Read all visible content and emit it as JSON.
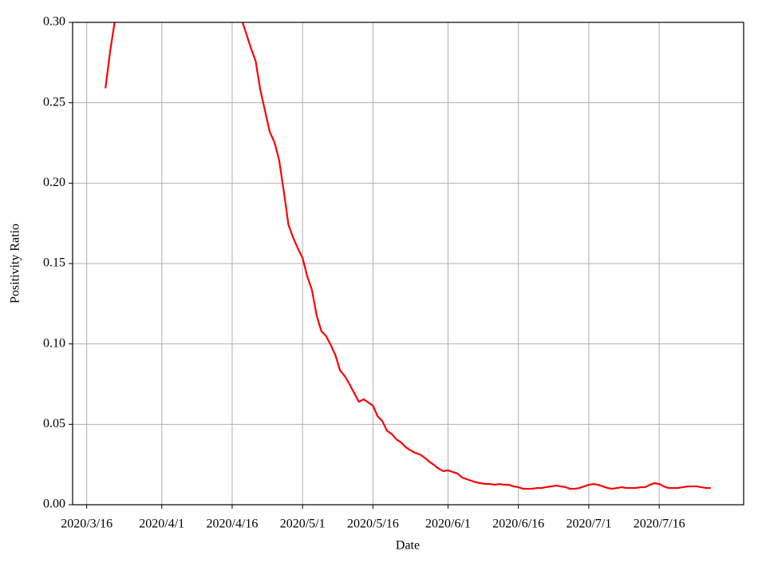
{
  "chart_data": {
    "type": "line",
    "x_label": "Date",
    "y_label": "Positivity Ratio",
    "x": [
      "2020/3/20",
      "2020/3/21",
      "2020/3/22",
      "2020/3/23",
      "2020/3/24",
      "2020/3/25",
      "2020/3/26",
      "2020/3/27",
      "2020/3/28",
      "2020/3/29",
      "2020/3/30",
      "2020/3/31",
      "2020/4/1",
      "2020/4/2",
      "2020/4/3",
      "2020/4/4",
      "2020/4/5",
      "2020/4/6",
      "2020/4/7",
      "2020/4/8",
      "2020/4/9",
      "2020/4/10",
      "2020/4/11",
      "2020/4/12",
      "2020/4/13",
      "2020/4/14",
      "2020/4/15",
      "2020/4/16",
      "2020/4/17",
      "2020/4/18",
      "2020/4/19",
      "2020/4/20",
      "2020/4/21",
      "2020/4/22",
      "2020/4/23",
      "2020/4/24",
      "2020/4/25",
      "2020/4/26",
      "2020/4/27",
      "2020/4/28",
      "2020/4/29",
      "2020/4/30",
      "2020/5/1",
      "2020/5/2",
      "2020/5/3",
      "2020/5/4",
      "2020/5/5",
      "2020/5/6",
      "2020/5/7",
      "2020/5/8",
      "2020/5/9",
      "2020/5/10",
      "2020/5/11",
      "2020/5/12",
      "2020/5/13",
      "2020/5/14",
      "2020/5/15",
      "2020/5/16",
      "2020/5/17",
      "2020/5/18",
      "2020/5/19",
      "2020/5/20",
      "2020/5/21",
      "2020/5/22",
      "2020/5/23",
      "2020/5/24",
      "2020/5/25",
      "2020/5/26",
      "2020/5/27",
      "2020/5/28",
      "2020/5/29",
      "2020/5/30",
      "2020/5/31",
      "2020/6/1",
      "2020/6/2",
      "2020/6/3",
      "2020/6/4",
      "2020/6/5",
      "2020/6/6",
      "2020/6/7",
      "2020/6/8",
      "2020/6/9",
      "2020/6/10",
      "2020/6/11",
      "2020/6/12",
      "2020/6/13",
      "2020/6/14",
      "2020/6/15",
      "2020/6/16",
      "2020/6/17",
      "2020/6/18",
      "2020/6/19",
      "2020/6/20",
      "2020/6/21",
      "2020/6/22",
      "2020/6/23",
      "2020/6/24",
      "2020/6/25",
      "2020/6/26",
      "2020/6/27",
      "2020/6/28",
      "2020/6/29",
      "2020/6/30",
      "2020/7/1",
      "2020/7/2",
      "2020/7/3",
      "2020/7/4",
      "2020/7/5",
      "2020/7/6",
      "2020/7/7",
      "2020/7/8",
      "2020/7/9",
      "2020/7/10",
      "2020/7/11",
      "2020/7/12",
      "2020/7/13",
      "2020/7/14",
      "2020/7/15",
      "2020/7/16",
      "2020/7/17",
      "2020/7/18",
      "2020/7/19",
      "2020/7/20",
      "2020/7/21",
      "2020/7/22",
      "2020/7/23",
      "2020/7/24",
      "2020/7/25",
      "2020/7/26",
      "2020/7/27"
    ],
    "series": [
      {
        "color": "#ff0000",
        "values": [
          0.259,
          0.282,
          0.301,
          null,
          null,
          null,
          null,
          null,
          null,
          null,
          null,
          null,
          null,
          null,
          null,
          null,
          null,
          null,
          null,
          null,
          null,
          null,
          null,
          null,
          null,
          null,
          null,
          null,
          null,
          0.302,
          0.293,
          0.284,
          0.276,
          0.258,
          0.245,
          0.232,
          0.2255,
          0.2145,
          0.195,
          0.174,
          0.166,
          0.1595,
          0.1535,
          0.142,
          0.1336,
          0.1177,
          0.108,
          0.105,
          0.0994,
          0.093,
          0.0835,
          0.08,
          0.075,
          0.0695,
          0.064,
          0.0656,
          0.0636,
          0.0616,
          0.055,
          0.052,
          0.046,
          0.044,
          0.0407,
          0.0387,
          0.0358,
          0.0338,
          0.0323,
          0.0313,
          0.0293,
          0.0268,
          0.0248,
          0.0224,
          0.0209,
          0.0214,
          0.0204,
          0.0194,
          0.0169,
          0.0159,
          0.0149,
          0.0139,
          0.0134,
          0.0129,
          0.0129,
          0.0124,
          0.0129,
          0.0124,
          0.0124,
          0.0114,
          0.0109,
          0.0099,
          0.0099,
          0.01,
          0.0104,
          0.0104,
          0.011,
          0.0114,
          0.0119,
          0.0114,
          0.011,
          0.0099,
          0.0099,
          0.0104,
          0.0114,
          0.0124,
          0.0129,
          0.0124,
          0.0114,
          0.0104,
          0.0099,
          0.0104,
          0.0109,
          0.0104,
          0.0104,
          0.0104,
          0.0109,
          0.0109,
          0.0124,
          0.0134,
          0.0129,
          0.0114,
          0.0104,
          0.0104,
          0.0104,
          0.0109,
          0.0114,
          0.0114,
          0.0114,
          0.0109,
          0.0104,
          0.0104
        ]
      }
    ],
    "xlim": [
      "2020/3/13",
      "2020/8/3"
    ],
    "xticks": [
      "2020/3/16",
      "2020/4/1",
      "2020/4/16",
      "2020/5/1",
      "2020/5/16",
      "2020/6/1",
      "2020/6/16",
      "2020/7/1",
      "2020/7/16"
    ],
    "ylim": [
      0,
      0.3
    ],
    "yticks": [
      {
        "value": 0,
        "label": "0.00"
      },
      0.05,
      {
        "value": 0.1,
        "label": "0.10"
      },
      0.15,
      {
        "value": 0.2,
        "label": "0.20"
      },
      0.25,
      {
        "value": 0.3,
        "label": "0.30"
      }
    ],
    "grid": true
  }
}
